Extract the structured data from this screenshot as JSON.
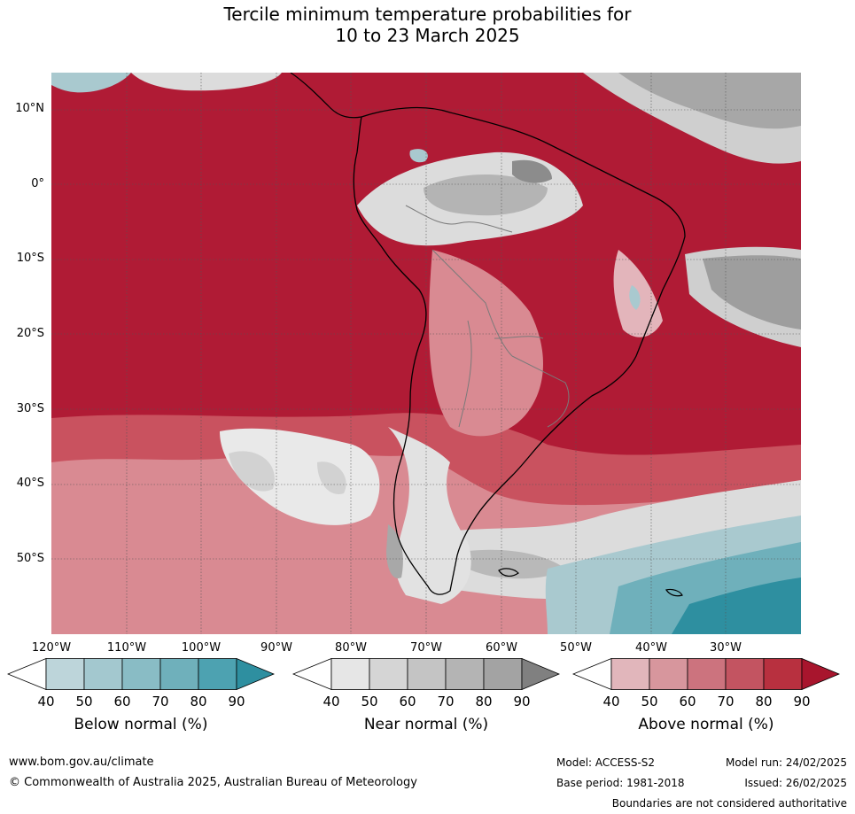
{
  "title": {
    "line1": "Tercile minimum temperature probabilities for",
    "line2": "10 to 23 March 2025"
  },
  "map": {
    "lat_labels": [
      "10°N",
      "0°",
      "10°S",
      "20°S",
      "30°S",
      "40°S",
      "50°S"
    ],
    "lon_labels": [
      "120°W",
      "110°W",
      "100°W",
      "90°W",
      "80°W",
      "70°W",
      "60°W",
      "50°W",
      "40°W",
      "30°W"
    ],
    "colors": {
      "above_90": "#b01b35",
      "above_70": "#c9525f",
      "above_60": "#d98a92",
      "near_50": "#dcdcdc",
      "near_70": "#b4b4b4",
      "near_90": "#8c8c8c",
      "below_50": "#a9c9cf",
      "below_70": "#6fb0bb",
      "below_90": "#2e8fa0",
      "ocean_border": "#444444"
    }
  },
  "colorbars": [
    {
      "name": "below",
      "label": "Below normal (%)",
      "ticks": [
        "40",
        "50",
        "60",
        "70",
        "80",
        "90"
      ],
      "colors": [
        "#bdd5da",
        "#a3c8cf",
        "#89bcc5",
        "#6fb0bb",
        "#4da2b1",
        "#2e8fa0"
      ]
    },
    {
      "name": "near",
      "label": "Near normal (%)",
      "ticks": [
        "40",
        "50",
        "60",
        "70",
        "80",
        "90"
      ],
      "colors": [
        "#e6e6e6",
        "#d5d5d5",
        "#c4c4c4",
        "#b4b4b4",
        "#a3a3a3",
        "#808080"
      ]
    },
    {
      "name": "above",
      "label": "Above normal (%)",
      "ticks": [
        "40",
        "50",
        "60",
        "70",
        "80",
        "90"
      ],
      "colors": [
        "#e1b6bb",
        "#d7969d",
        "#cc737e",
        "#c35461",
        "#b8303f",
        "#a8152d"
      ]
    }
  ],
  "footer": {
    "website": "www.bom.gov.au/climate",
    "copyright": "© Commonwealth of Australia 2025, Australian Bureau of Meteorology",
    "model": "Model: ACCESS-S2",
    "base_period": "Base period: 1981-2018",
    "model_run": "Model run: 24/02/2025",
    "issued": "Issued: 26/02/2025",
    "disclaimer": "Boundaries are not considered authoritative"
  }
}
